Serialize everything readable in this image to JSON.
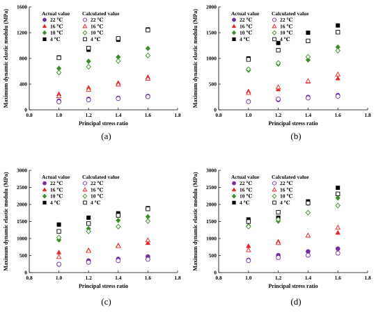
{
  "styles": {
    "22": {
      "color": "#7030A0",
      "marker": "circle"
    },
    "16": {
      "color": "#E8262A",
      "marker": "triangle"
    },
    "10": {
      "color": "#3C8C28",
      "marker": "diamond"
    },
    "4": {
      "color": "#000000",
      "marker": "square"
    }
  },
  "chart_data": [
    {
      "type": "scatter",
      "panel_label": "(a)",
      "xlabel": "Principal stress ratio",
      "ylabel": "Maximum dynamic elastic modulu (MPa)",
      "xlim": [
        0.8,
        1.8
      ],
      "ylim": [
        0,
        1600
      ],
      "xticks": [
        "0.8",
        "1.0",
        "1.2",
        "1.4",
        "1.6",
        "1.8"
      ],
      "yticks": [
        "0",
        "400",
        "800",
        "1200",
        "1600"
      ],
      "legend_titles": {
        "actual": "Actual value",
        "calculated": "Calculated value"
      },
      "series": [
        {
          "name": "22 ℃",
          "key": "22",
          "kind": "actual",
          "x": [
            1.0,
            1.2,
            1.4,
            1.6
          ],
          "y": [
            140,
            170,
            185,
            215
          ]
        },
        {
          "name": "16 ℃",
          "key": "16",
          "kind": "actual",
          "x": [
            1.0,
            1.2,
            1.4,
            1.6
          ],
          "y": [
            245,
            345,
            420,
            510
          ]
        },
        {
          "name": "10 ℃",
          "key": "10",
          "kind": "actual",
          "x": [
            1.0,
            1.2,
            1.4,
            1.6
          ],
          "y": [
            645,
            755,
            820,
            955
          ]
        },
        {
          "name": "4 ℃",
          "key": "4",
          "kind": "actual",
          "x": [
            1.0,
            1.2,
            1.4,
            1.6
          ],
          "y": [
            815,
            935,
            1090,
            1250
          ]
        },
        {
          "name": "22 ℃",
          "key": "22",
          "kind": "calculated",
          "x": [
            1.0,
            1.2,
            1.4,
            1.6
          ],
          "y": [
            125,
            155,
            175,
            205
          ]
        },
        {
          "name": "16 ℃",
          "key": "16",
          "kind": "calculated",
          "x": [
            1.0,
            1.2,
            1.4,
            1.6
          ],
          "y": [
            215,
            315,
            395,
            485
          ]
        },
        {
          "name": "10 ℃",
          "key": "10",
          "kind": "calculated",
          "x": [
            1.0,
            1.2,
            1.4,
            1.6
          ],
          "y": [
            580,
            670,
            760,
            845
          ]
        },
        {
          "name": "4 ℃",
          "key": "4",
          "kind": "calculated",
          "x": [
            1.0,
            1.2,
            1.4,
            1.6
          ],
          "y": [
            810,
            960,
            1110,
            1240
          ]
        }
      ]
    },
    {
      "type": "scatter",
      "panel_label": "(b)",
      "xlabel": "Principal stress ratio",
      "ylabel": "Maximum dynamic elastic modulu (MPa)",
      "xlim": [
        0.8,
        1.8
      ],
      "ylim": [
        0,
        2000
      ],
      "xticks": [
        "0.8",
        "1.0",
        "1.2",
        "1.4",
        "1.6",
        "1.8"
      ],
      "yticks": [
        "0",
        "500",
        "1000",
        "1500",
        "2000"
      ],
      "legend_titles": {
        "actual": "Actual value",
        "calculated": "Calculated value"
      },
      "series": [
        {
          "name": "22 ℃",
          "key": "22",
          "kind": "actual",
          "x": [
            1.0,
            1.2,
            1.4,
            1.6
          ],
          "y": [
            165,
            195,
            250,
            285
          ]
        },
        {
          "name": "16 ℃",
          "key": "16",
          "kind": "actual",
          "x": [
            1.0,
            1.2,
            1.4,
            1.6
          ],
          "y": [
            360,
            400,
            550,
            610
          ]
        },
        {
          "name": "10 ℃",
          "key": "10",
          "kind": "actual",
          "x": [
            1.0,
            1.2,
            1.4,
            1.6
          ],
          "y": [
            770,
            890,
            970,
            1220
          ]
        },
        {
          "name": "4 ℃",
          "key": "4",
          "kind": "actual",
          "x": [
            1.0,
            1.2,
            1.4,
            1.6
          ],
          "y": [
            1000,
            1300,
            1500,
            1640
          ]
        },
        {
          "name": "22 ℃",
          "key": "22",
          "kind": "calculated",
          "x": [
            1.0,
            1.2,
            1.4,
            1.6
          ],
          "y": [
            160,
            210,
            230,
            265
          ]
        },
        {
          "name": "16 ℃",
          "key": "16",
          "kind": "calculated",
          "x": [
            1.0,
            1.2,
            1.4,
            1.6
          ],
          "y": [
            330,
            440,
            560,
            690
          ]
        },
        {
          "name": "10 ℃",
          "key": "10",
          "kind": "calculated",
          "x": [
            1.0,
            1.2,
            1.4,
            1.6
          ],
          "y": [
            790,
            910,
            1030,
            1150
          ]
        },
        {
          "name": "4 ℃",
          "key": "4",
          "kind": "calculated",
          "x": [
            1.0,
            1.2,
            1.4,
            1.6
          ],
          "y": [
            980,
            1160,
            1340,
            1510
          ]
        }
      ]
    },
    {
      "type": "scatter",
      "panel_label": "(c)",
      "xlabel": "Principal stress ratio",
      "ylabel": "Maximum dynamic elastic modulu (MPa)",
      "xlim": [
        0.8,
        1.8
      ],
      "ylim": [
        0,
        3000
      ],
      "xticks": [
        "0.8",
        "1.0",
        "1.2",
        "1.4",
        "1.6",
        "1.8"
      ],
      "yticks": [
        "0",
        "500",
        "1000",
        "1500",
        "2000",
        "2500",
        "3000"
      ],
      "legend_titles": {
        "actual": "Actual value",
        "calculated": "Calculated value"
      },
      "series": [
        {
          "name": "22 ℃",
          "key": "22",
          "kind": "actual",
          "x": [
            1.0,
            1.2,
            1.4,
            1.6
          ],
          "y": [
            240,
            350,
            400,
            470
          ]
        },
        {
          "name": "16 ℃",
          "key": "16",
          "kind": "actual",
          "x": [
            1.0,
            1.2,
            1.4,
            1.6
          ],
          "y": [
            590,
            660,
            800,
            870
          ]
        },
        {
          "name": "10 ℃",
          "key": "10",
          "kind": "actual",
          "x": [
            1.0,
            1.2,
            1.4,
            1.6
          ],
          "y": [
            960,
            1290,
            1530,
            1640
          ]
        },
        {
          "name": "4 ℃",
          "key": "4",
          "kind": "actual",
          "x": [
            1.0,
            1.2,
            1.4,
            1.6
          ],
          "y": [
            1410,
            1610,
            1740,
            1890
          ]
        },
        {
          "name": "22 ℃",
          "key": "22",
          "kind": "calculated",
          "x": [
            1.0,
            1.2,
            1.4,
            1.6
          ],
          "y": [
            245,
            300,
            350,
            390
          ]
        },
        {
          "name": "16 ℃",
          "key": "16",
          "kind": "calculated",
          "x": [
            1.0,
            1.2,
            1.4,
            1.6
          ],
          "y": [
            460,
            640,
            780,
            950
          ]
        },
        {
          "name": "10 ℃",
          "key": "10",
          "kind": "calculated",
          "x": [
            1.0,
            1.2,
            1.4,
            1.6
          ],
          "y": [
            1030,
            1210,
            1350,
            1510
          ]
        },
        {
          "name": "4 ℃",
          "key": "4",
          "kind": "calculated",
          "x": [
            1.0,
            1.2,
            1.4,
            1.6
          ],
          "y": [
            1210,
            1440,
            1680,
            1870
          ]
        }
      ]
    },
    {
      "type": "scatter",
      "panel_label": "(d)",
      "xlabel": "Principal stress ratio",
      "ylabel": "Maximum dynamic elastic modulu (MPa)",
      "xlim": [
        0.8,
        1.8
      ],
      "ylim": [
        0,
        3000
      ],
      "xticks": [
        "0.8",
        "1.0",
        "1.2",
        "1.4",
        "1.6",
        "1.8"
      ],
      "yticks": [
        "0",
        "500",
        "1000",
        "1500",
        "2000",
        "2500",
        "3000"
      ],
      "legend_titles": {
        "actual": "Actual value",
        "calculated": "Calculated value"
      },
      "series": [
        {
          "name": "22 ℃",
          "key": "22",
          "kind": "actual",
          "x": [
            1.0,
            1.2,
            1.4,
            1.6
          ],
          "y": [
            370,
            510,
            620,
            700
          ]
        },
        {
          "name": "16 ℃",
          "key": "16",
          "kind": "actual",
          "x": [
            1.0,
            1.2,
            1.4,
            1.6
          ],
          "y": [
            780,
            910,
            1090,
            1170
          ]
        },
        {
          "name": "10 ℃",
          "key": "10",
          "kind": "actual",
          "x": [
            1.0,
            1.2,
            1.4,
            1.6
          ],
          "y": [
            1370,
            1510,
            2030,
            2190
          ]
        },
        {
          "name": "4 ℃",
          "key": "4",
          "kind": "actual",
          "x": [
            1.0,
            1.2,
            1.4,
            1.6
          ],
          "y": [
            1560,
            1610,
            2090,
            2490
          ]
        },
        {
          "name": "22 ℃",
          "key": "22",
          "kind": "calculated",
          "x": [
            1.0,
            1.2,
            1.4,
            1.6
          ],
          "y": [
            350,
            440,
            510,
            570
          ]
        },
        {
          "name": "16 ℃",
          "key": "16",
          "kind": "calculated",
          "x": [
            1.0,
            1.2,
            1.4,
            1.6
          ],
          "y": [
            660,
            870,
            1090,
            1320
          ]
        },
        {
          "name": "10 ℃",
          "key": "10",
          "kind": "calculated",
          "x": [
            1.0,
            1.2,
            1.4,
            1.6
          ],
          "y": [
            1350,
            1560,
            1760,
            1970
          ]
        },
        {
          "name": "4 ℃",
          "key": "4",
          "kind": "calculated",
          "x": [
            1.0,
            1.2,
            1.4,
            1.6
          ],
          "y": [
            1500,
            1770,
            2040,
            2310
          ]
        }
      ]
    }
  ]
}
